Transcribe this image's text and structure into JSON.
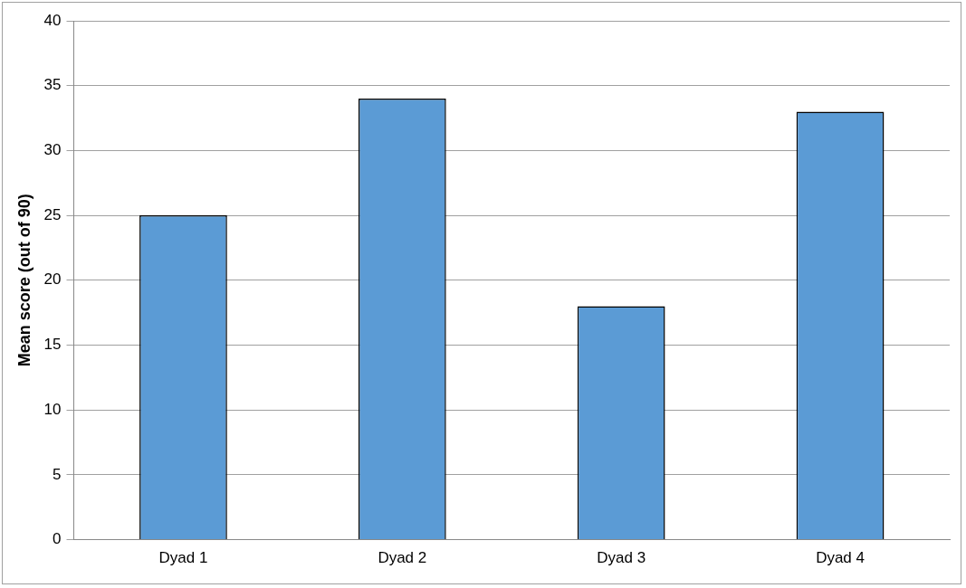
{
  "chart_data": {
    "type": "bar",
    "ylabel": "Mean score (out of 90)",
    "categories": [
      "Dyad 1",
      "Dyad 2",
      "Dyad 3",
      "Dyad 4"
    ],
    "series": [
      {
        "color": "#5b9bd5",
        "values": [
          25,
          34,
          18,
          33
        ]
      }
    ],
    "ylim": [
      0,
      40
    ],
    "yticks": [
      0,
      5,
      10,
      15,
      20,
      25,
      30,
      35,
      40
    ],
    "grid": "y",
    "legend": false
  }
}
